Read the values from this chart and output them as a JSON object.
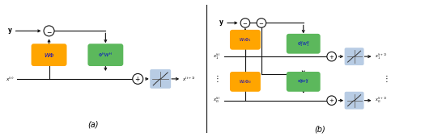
{
  "fig_width": 5.46,
  "fig_height": 1.7,
  "dpi": 100,
  "bg_color": "#ffffff",
  "orange_color": "#FFA500",
  "green_color": "#5CB85C",
  "blue_color": "#B8CCE4",
  "text_blue": "#0000CD",
  "line_color": "#111111",
  "caption_a": "(a)",
  "caption_b": "(b)"
}
